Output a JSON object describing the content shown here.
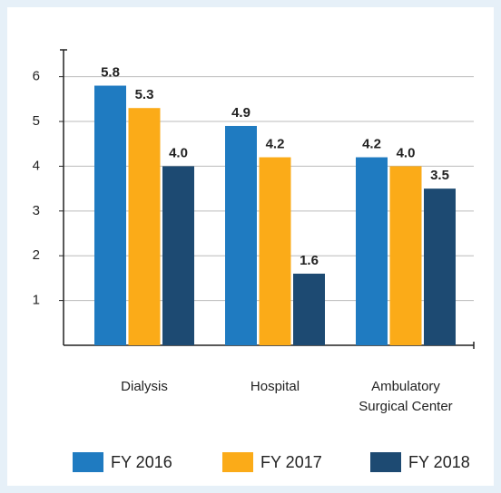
{
  "chart_data": {
    "type": "bar",
    "categories": [
      "Dialysis",
      "Hospital",
      "Ambulatory Surgical Center"
    ],
    "series": [
      {
        "name": "FY 2016",
        "color": "#1f7bc1",
        "values": [
          5.8,
          4.9,
          4.2
        ],
        "value_labels": [
          "5.8",
          "4.9",
          "4.2"
        ]
      },
      {
        "name": "FY 2017",
        "color": "#fbab18",
        "values": [
          5.3,
          4.2,
          4.0
        ],
        "value_labels": [
          "5.3",
          "4.2",
          "4.0"
        ]
      },
      {
        "name": "FY 2018",
        "color": "#1d4a72",
        "values": [
          4.0,
          1.6,
          3.5
        ],
        "value_labels": [
          "4.0",
          "1.6",
          "3.5"
        ]
      }
    ],
    "ylim": [
      0,
      6.6
    ],
    "yticks": [
      1,
      2,
      3,
      4,
      5,
      6
    ],
    "grid": true,
    "legend": "bottom"
  }
}
